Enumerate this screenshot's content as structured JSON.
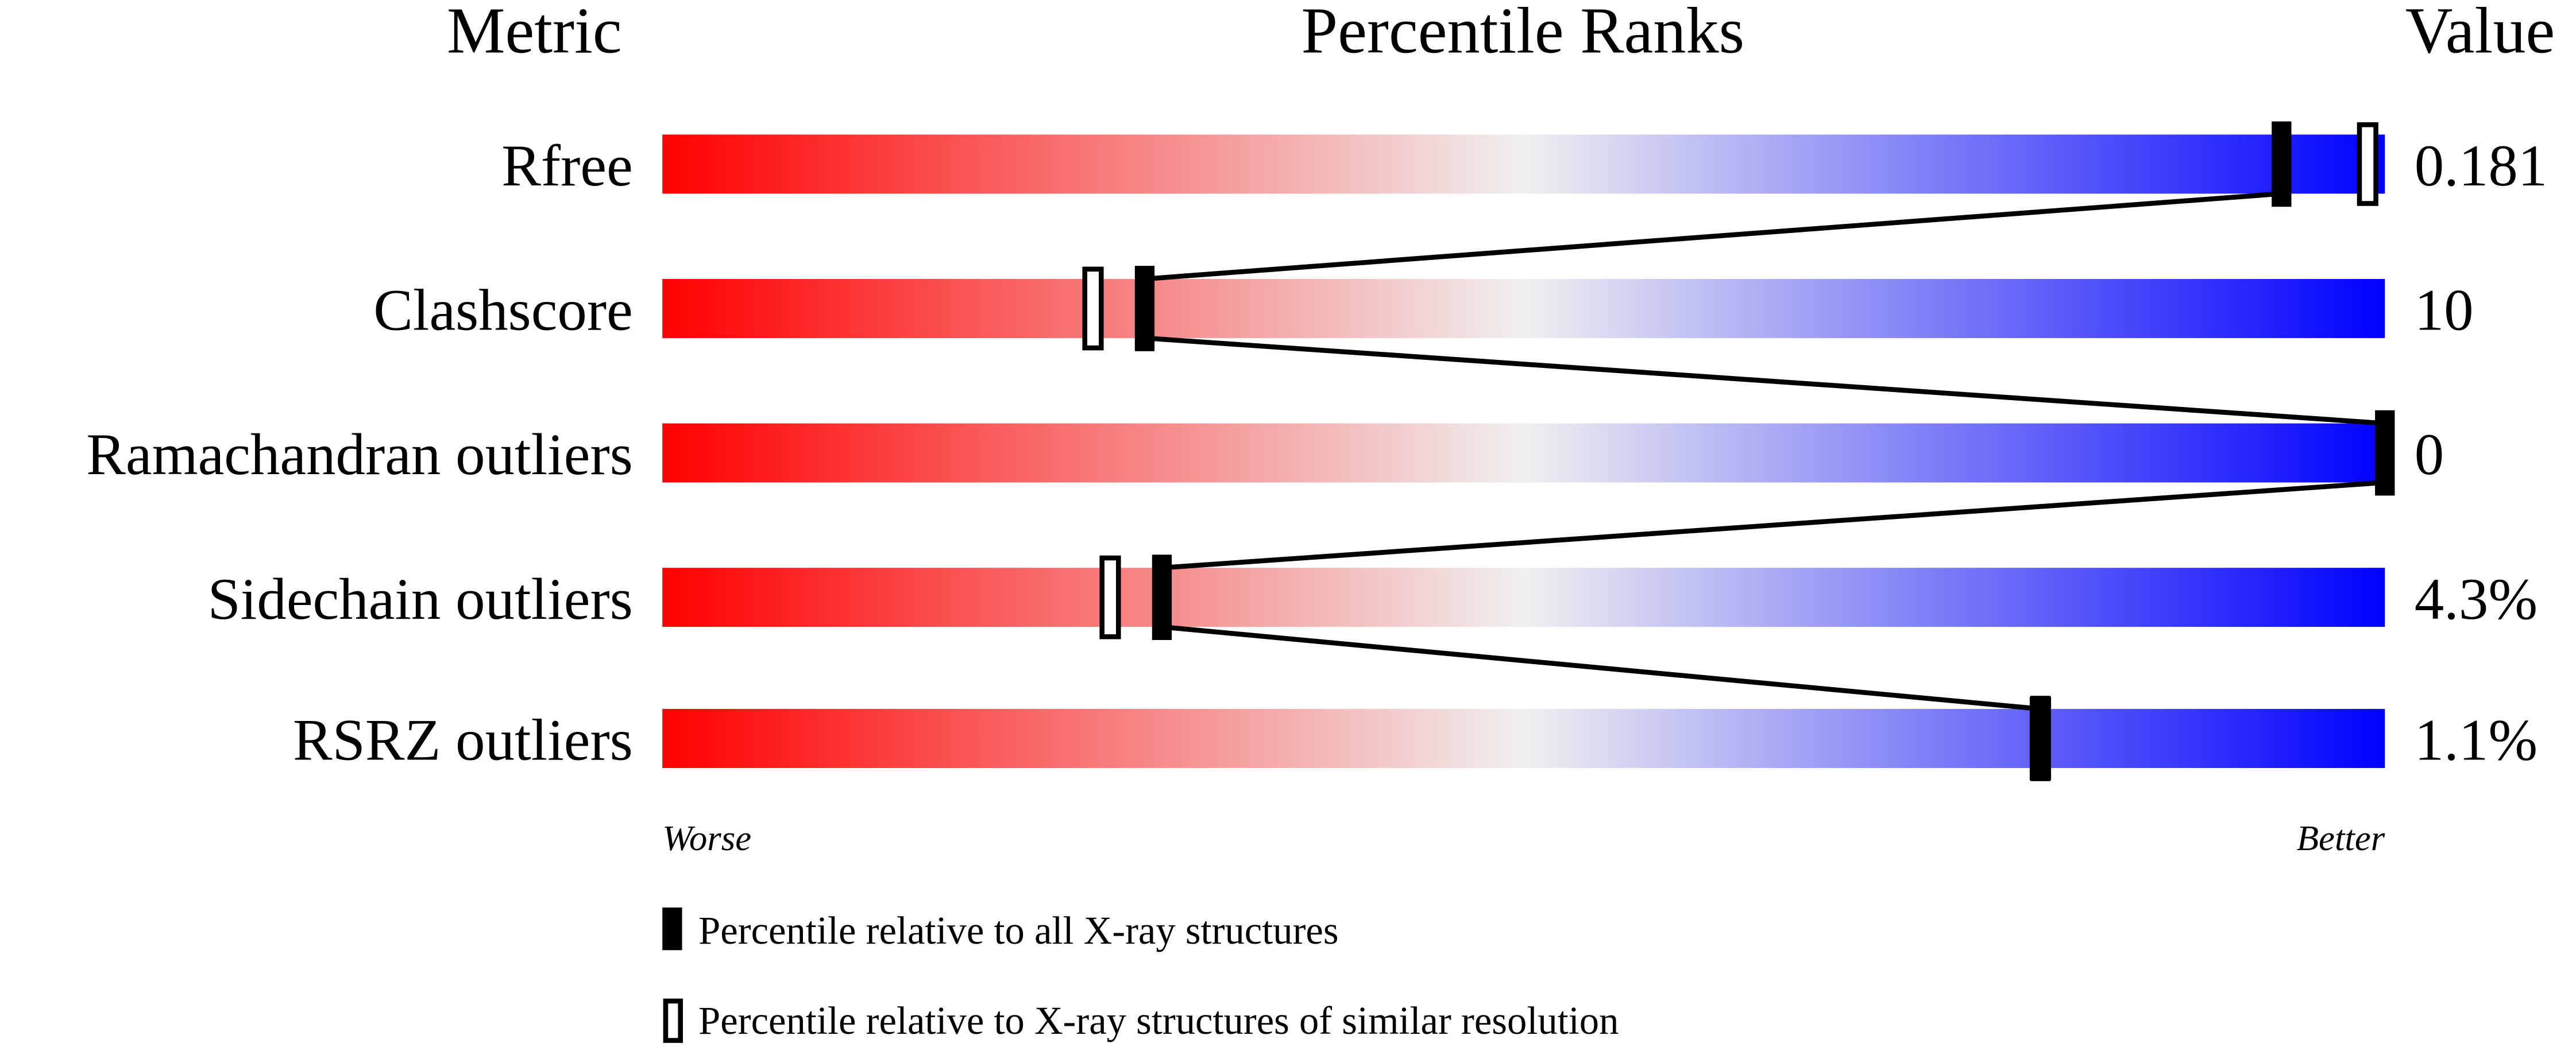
{
  "chart_data": {
    "type": "percentile-slider",
    "headers": {
      "metric": "Metric",
      "ranks": "Percentile Ranks",
      "value": "Value"
    },
    "xlim": [
      0,
      100
    ],
    "metrics": [
      {
        "name": "Rfree",
        "value": "0.181",
        "percentile_all": 94,
        "percentile_similar": 99
      },
      {
        "name": "Clashscore",
        "value": "10",
        "percentile_all": 28,
        "percentile_similar": 25
      },
      {
        "name": "Ramachandran outliers",
        "value": "0",
        "percentile_all": 100,
        "percentile_similar": null
      },
      {
        "name": "Sidechain outliers",
        "value": "4.3%",
        "percentile_all": 29,
        "percentile_similar": 26
      },
      {
        "name": "RSRZ outliers",
        "value": "1.1%",
        "percentile_all": 80,
        "percentile_similar": 80
      }
    ],
    "axis_labels": {
      "left": "Worse",
      "right": "Better"
    },
    "legend": [
      {
        "marker": "filled",
        "label": "Percentile relative to all X-ray structures"
      },
      {
        "marker": "open",
        "label": "Percentile relative to X-ray structures of similar resolution"
      }
    ],
    "colors": {
      "worse": "#ff0000",
      "middle": "#f0f0f0",
      "better": "#0000ff",
      "marker": "#000000"
    }
  }
}
